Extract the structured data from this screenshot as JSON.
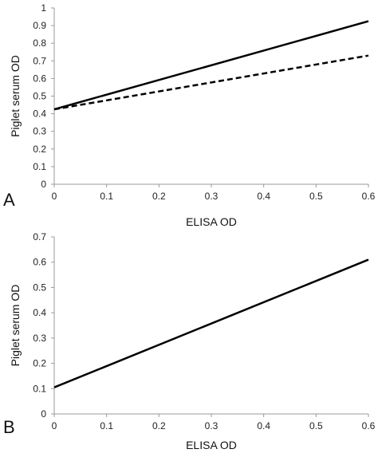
{
  "chart_data": [
    {
      "type": "line",
      "panel_label": "A",
      "xlabel": "ELISA OD",
      "ylabel": "Piglet serum OD",
      "xlim": [
        0,
        0.6
      ],
      "ylim": [
        0,
        1
      ],
      "xticks": [
        "0",
        "0.1",
        "0.2",
        "0.3",
        "0.4",
        "0.5",
        "0.6"
      ],
      "yticks": [
        "0",
        "0.1",
        "0.2",
        "0.3",
        "0.4",
        "0.5",
        "0.6",
        "0.7",
        "0.8",
        "0.9",
        "1"
      ],
      "grid": false,
      "legend": "none",
      "series": [
        {
          "style": "solid",
          "color": "#000000",
          "x": [
            0,
            0.6
          ],
          "y": [
            0.425,
            0.925
          ]
        },
        {
          "style": "dashed",
          "color": "#000000",
          "x": [
            0,
            0.6
          ],
          "y": [
            0.425,
            0.73
          ]
        }
      ]
    },
    {
      "type": "line",
      "panel_label": "B",
      "xlabel": "ELISA OD",
      "ylabel": "Piglet serum OD",
      "xlim": [
        0,
        0.6
      ],
      "ylim": [
        0,
        0.7
      ],
      "xticks": [
        "0",
        "0.1",
        "0.2",
        "0.3",
        "0.4",
        "0.5",
        "0.6"
      ],
      "yticks": [
        "0",
        "0.1",
        "0.2",
        "0.3",
        "0.4",
        "0.5",
        "0.6",
        "0.7"
      ],
      "grid": false,
      "legend": "none",
      "series": [
        {
          "style": "solid",
          "color": "#000000",
          "x": [
            0,
            0.6
          ],
          "y": [
            0.105,
            0.61
          ]
        }
      ]
    }
  ]
}
